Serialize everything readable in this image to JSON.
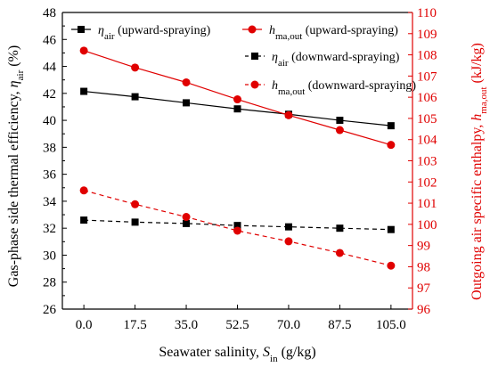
{
  "chart_data": {
    "type": "line",
    "xlabel_main": "Seawater salinity, ",
    "xlabel_sym": "S",
    "xlabel_sub": "in",
    "xlabel_unit": " (g/kg)",
    "ylabel_left_main": "Gas-phase side thermal efficiency, ",
    "ylabel_left_sym": "η",
    "ylabel_left_sub": "air",
    "ylabel_left_unit": " (%)",
    "ylabel_right_main": "Outgoing air specific enthalpy, ",
    "ylabel_right_sym": "h",
    "ylabel_right_sub": "ma,out",
    "ylabel_right_unit": " (kJ/kg)",
    "x": [
      0.0,
      17.5,
      35.0,
      52.5,
      70.0,
      87.5,
      105.0
    ],
    "x_tick_labels": [
      "0.0",
      "17.5",
      "35.0",
      "52.5",
      "70.0",
      "87.5",
      "105.0"
    ],
    "y_left_ticks": [
      "26",
      "28",
      "30",
      "32",
      "34",
      "36",
      "38",
      "40",
      "42",
      "44",
      "46",
      "48"
    ],
    "y_right_ticks": [
      "96",
      "97",
      "98",
      "99",
      "100",
      "101",
      "102",
      "103",
      "104",
      "105",
      "106",
      "107",
      "108",
      "109",
      "110"
    ],
    "ylim_left": [
      26,
      48
    ],
    "ylim_right": [
      96,
      110
    ],
    "grid": false,
    "legend_placement": "top",
    "colors": {
      "black": "#000000",
      "red": "#e00000"
    },
    "series": [
      {
        "legend_sym": "η",
        "legend_sub": "air",
        "legend_suffix": " (upward-spraying)",
        "axis": "left",
        "color": "#000000",
        "marker": "square",
        "dashed": false,
        "values": [
          42.15,
          41.75,
          41.3,
          40.85,
          40.45,
          40.0,
          39.6
        ]
      },
      {
        "legend_sym": "h",
        "legend_sub": "ma,out",
        "legend_suffix": " (upward-spraying)",
        "axis": "right",
        "color": "#e00000",
        "marker": "circle",
        "dashed": false,
        "values": [
          108.2,
          107.4,
          106.7,
          105.9,
          105.15,
          104.45,
          103.75
        ]
      },
      {
        "legend_sym": "η",
        "legend_sub": "air",
        "legend_suffix": " (downward-spraying)",
        "axis": "left",
        "color": "#000000",
        "marker": "square",
        "dashed": true,
        "values": [
          32.6,
          32.45,
          32.35,
          32.2,
          32.1,
          32.0,
          31.9
        ]
      },
      {
        "legend_sym": "h",
        "legend_sub": "ma,out",
        "legend_suffix": " (downward-spraying)",
        "axis": "right",
        "color": "#e00000",
        "marker": "circle",
        "dashed": true,
        "values": [
          101.6,
          100.95,
          100.35,
          99.7,
          99.2,
          98.65,
          98.05
        ]
      }
    ]
  }
}
